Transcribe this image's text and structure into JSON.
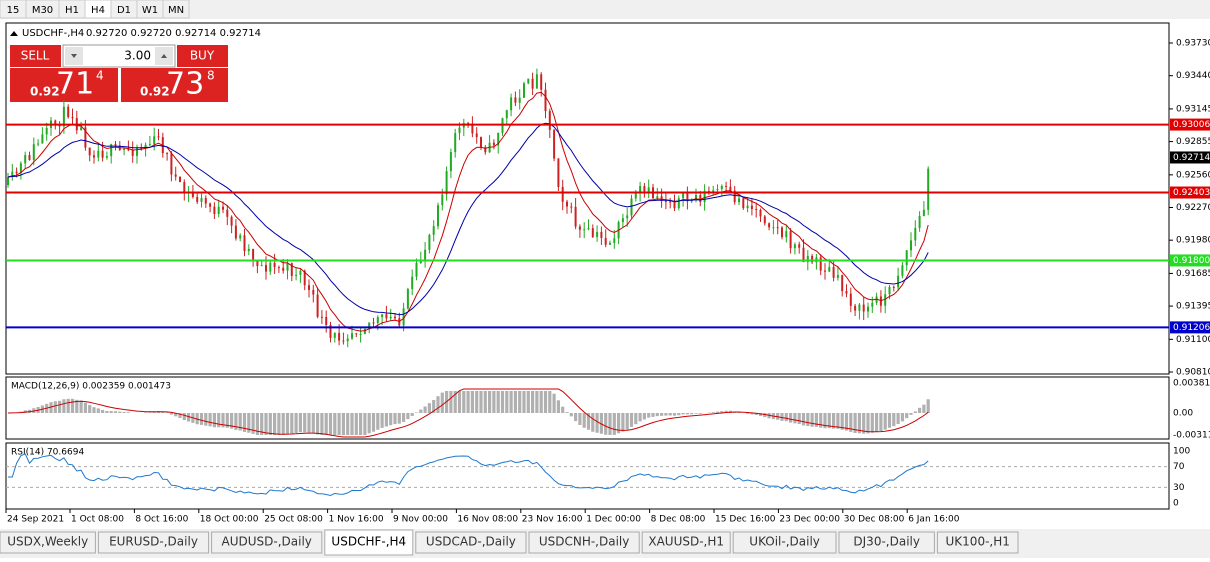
{
  "toolbar": {
    "timeframes": [
      "15",
      "M30",
      "H1",
      "H4",
      "D1",
      "W1",
      "MN"
    ],
    "active": "H4"
  },
  "chart": {
    "symbol": "USDCHF-,H4",
    "ohlc": "0.92720 0.92720 0.92714 0.92714",
    "trade_panel": {
      "sell": "SELL",
      "buy": "BUY",
      "volume": "3.00",
      "bid": {
        "big": "0.92",
        "main": "71",
        "pip": "4"
      },
      "ask": {
        "big": "0.92",
        "main": "73",
        "pip": "8"
      }
    },
    "ylim": [
      0.9081,
      0.9373
    ],
    "yticks": [
      {
        "value": 0.9373,
        "label": "0.93730"
      },
      {
        "value": 0.9344,
        "label": "0.93440"
      },
      0.93145,
      0.92855,
      {
        "value": 0.9256,
        "label": "0.92560"
      },
      {
        "value": 0.9227,
        "label": "0.92270"
      },
      {
        "value": 0.9198,
        "label": "0.91980"
      },
      0.91685,
      0.91395,
      {
        "value": 0.911,
        "label": "0.91100"
      },
      {
        "value": 0.9081,
        "label": "0.90810"
      }
    ],
    "levels": [
      {
        "value": 0.93006,
        "label": "0.93006",
        "color": "#e00000"
      },
      {
        "value": 0.92403,
        "label": "0.92403",
        "color": "#e00000"
      },
      {
        "value": 0.918,
        "label": "0.91800",
        "color": "#22dd22"
      },
      {
        "value": 0.91206,
        "label": "0.91206",
        "color": "#0000cc"
      }
    ],
    "current_price": {
      "value": 0.92714,
      "label": "0.92714"
    },
    "dates": [
      "24 Sep 2021",
      "1 Oct 08:00",
      "8 Oct 16:00",
      "18 Oct 00:00",
      "25 Oct 08:00",
      "1 Nov 16:00",
      "9 Nov 00:00",
      "16 Nov 08:00",
      "23 Nov 16:00",
      "1 Dec 00:00",
      "8 Dec 08:00",
      "15 Dec 16:00",
      "23 Dec 00:00",
      "30 Dec 08:00",
      "6 Jan 16:00"
    ]
  },
  "macd": {
    "label": "MACD(12,26,9) 0.002359 0.001473",
    "ticks": [
      "0.003811",
      "0.00",
      "-0.003115"
    ]
  },
  "rsi": {
    "label": "RSI(14) 70.6694",
    "ylim": [
      0,
      100
    ],
    "yticks": [
      100,
      70,
      30,
      0
    ]
  },
  "tabs": [
    "USDX,Weekly",
    "EURUSD-,Daily",
    "AUDUSD-,Daily",
    "USDCHF-,H4",
    "USDCAD-,Daily",
    "USDCNH-,Daily",
    "XAUUSD-,H1",
    "UKOil-,Daily",
    "DJ30-,Daily",
    "UK100-,H1"
  ],
  "active_tab": "USDCHF-,H4"
}
